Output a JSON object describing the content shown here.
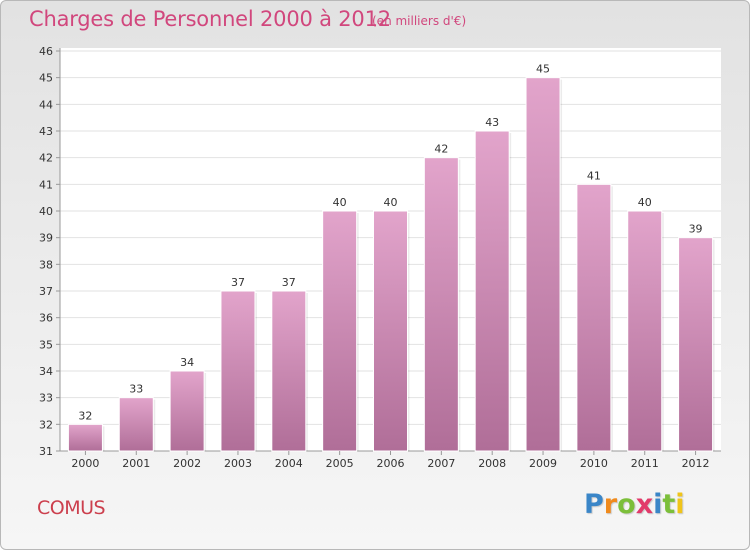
{
  "header": {
    "title": "Charges de Personnel 2000 à 2012",
    "subtitle": "(en milliers d'€)"
  },
  "footer": {
    "commune": "COMUS",
    "logo_letters": [
      "P",
      "r",
      "o",
      "x",
      "i",
      "t",
      "i"
    ],
    "logo_colors": [
      "#3a86c8",
      "#f08a1c",
      "#7cbf3a",
      "#e23a6a",
      "#3a86c8",
      "#7cbf3a",
      "#f0c419"
    ]
  },
  "colors": {
    "bar_light": "#e2a4cb",
    "bar_dark": "#b06e98",
    "text": "#333333"
  },
  "chart_data": {
    "type": "bar",
    "title": "Charges de Personnel 2000 à 2012",
    "subtitle": "(en milliers d'€)",
    "categories": [
      "2000",
      "2001",
      "2002",
      "2003",
      "2004",
      "2005",
      "2006",
      "2007",
      "2008",
      "2009",
      "2010",
      "2011",
      "2012"
    ],
    "values": [
      32,
      33,
      34,
      37,
      37,
      40,
      40,
      42,
      43,
      45,
      41,
      40,
      39
    ],
    "ylim": [
      31,
      46
    ],
    "yticks": [
      31,
      32,
      33,
      34,
      35,
      36,
      37,
      38,
      39,
      40,
      41,
      42,
      43,
      44,
      45,
      46
    ],
    "grid": true,
    "legend": "none"
  }
}
